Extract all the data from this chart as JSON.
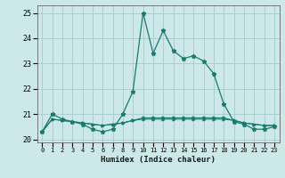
{
  "xlabel": "Humidex (Indice chaleur)",
  "ylabel": "",
  "background_color": "#cce8e8",
  "grid_color": "#aacfcf",
  "line_color": "#1a7a6e",
  "xlim": [
    -0.5,
    23.5
  ],
  "ylim": [
    19.88,
    25.3
  ],
  "yticks": [
    20,
    21,
    22,
    23,
    24,
    25
  ],
  "xticks": [
    0,
    1,
    2,
    3,
    4,
    5,
    6,
    7,
    8,
    9,
    10,
    11,
    12,
    13,
    14,
    15,
    16,
    17,
    18,
    19,
    20,
    21,
    22,
    23
  ],
  "series1_x": [
    0,
    1,
    2,
    3,
    4,
    5,
    6,
    7,
    8,
    9,
    10,
    11,
    12,
    13,
    14,
    15,
    16,
    17,
    18,
    19,
    20,
    21,
    22,
    23
  ],
  "series1_y": [
    20.3,
    21.0,
    20.8,
    20.7,
    20.6,
    20.4,
    20.3,
    20.4,
    21.0,
    21.9,
    25.0,
    23.4,
    24.3,
    23.5,
    23.2,
    23.3,
    23.1,
    22.6,
    21.4,
    20.7,
    20.6,
    20.4,
    20.4,
    20.5
  ],
  "series2_x": [
    0,
    1,
    2,
    3,
    4,
    5,
    6,
    7,
    8,
    9,
    10,
    11,
    12,
    13,
    14,
    15,
    16,
    17,
    18,
    19,
    20,
    21,
    22,
    23
  ],
  "series2_y": [
    20.3,
    20.8,
    20.75,
    20.7,
    20.65,
    20.6,
    20.55,
    20.6,
    20.65,
    20.75,
    20.8,
    20.8,
    20.8,
    20.8,
    20.8,
    20.8,
    20.8,
    20.8,
    20.8,
    20.75,
    20.65,
    20.6,
    20.55,
    20.55
  ],
  "series3_x": [
    0,
    1,
    2,
    3,
    4,
    5,
    6,
    7,
    8,
    9,
    10,
    11,
    12,
    13,
    14,
    15,
    16,
    17,
    18,
    19,
    20,
    21,
    22,
    23
  ],
  "series3_y": [
    20.3,
    20.8,
    20.75,
    20.7,
    20.65,
    20.6,
    20.55,
    20.6,
    20.65,
    20.75,
    20.85,
    20.85,
    20.85,
    20.85,
    20.85,
    20.85,
    20.85,
    20.85,
    20.85,
    20.75,
    20.65,
    20.6,
    20.55,
    20.55
  ]
}
